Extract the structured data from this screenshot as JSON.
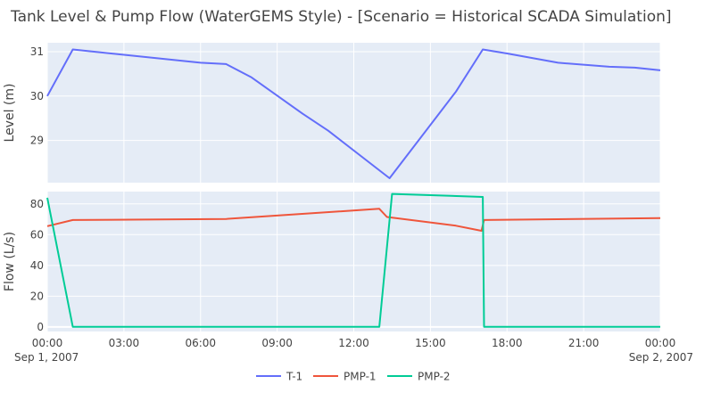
{
  "chart_data": {
    "type": "line",
    "title": "Tank Level & Pump Flow (WaterGEMS Style) - [Scenario = Historical SCADA Simulation]",
    "colors": {
      "plot_bg": "#E5ECF6",
      "grid": "#FFFFFF",
      "T-1": "#636EFA",
      "PMP-1": "#EF553B",
      "PMP-2": "#00CC96"
    },
    "x_axis": {
      "range_hours": [
        0,
        24
      ],
      "ticks": [
        {
          "h": 0,
          "label": "00:00",
          "sub": "Sep 1, 2007"
        },
        {
          "h": 3,
          "label": "03:00",
          "sub": ""
        },
        {
          "h": 6,
          "label": "06:00",
          "sub": ""
        },
        {
          "h": 9,
          "label": "09:00",
          "sub": ""
        },
        {
          "h": 12,
          "label": "12:00",
          "sub": ""
        },
        {
          "h": 15,
          "label": "15:00",
          "sub": ""
        },
        {
          "h": 18,
          "label": "18:00",
          "sub": ""
        },
        {
          "h": 21,
          "label": "21:00",
          "sub": ""
        },
        {
          "h": 24,
          "label": "00:00",
          "sub": "Sep 2, 2007"
        }
      ]
    },
    "panels": [
      {
        "id": "level",
        "ylabel": "Level (m)",
        "ylim": [
          28.05,
          31.2
        ],
        "yticks": [
          29,
          30,
          31
        ],
        "series": [
          {
            "name": "T-1",
            "x": [
              0,
              1,
              6,
              7,
              8,
              10,
              11,
              13.4,
              16,
              17.05,
              18,
              20,
              22,
              23,
              24
            ],
            "y": [
              30.0,
              31.05,
              30.75,
              30.72,
              30.42,
              29.6,
              29.22,
              28.15,
              30.1,
              31.05,
              30.96,
              30.75,
              30.66,
              30.64,
              30.58
            ]
          }
        ]
      },
      {
        "id": "flow",
        "ylabel": "Flow  (L/s)",
        "ylim": [
          -3,
          88
        ],
        "yticks": [
          0,
          20,
          40,
          60,
          80
        ],
        "series": [
          {
            "name": "PMP-1",
            "x": [
              0,
              1,
              7,
              13,
              13.3,
              16,
              17,
              17.1,
              24
            ],
            "y": [
              65.5,
              69.5,
              70.2,
              76.8,
              71.5,
              65.8,
              62.5,
              69.5,
              70.8
            ]
          },
          {
            "name": "PMP-2",
            "x": [
              0,
              1,
              13,
              13.5,
              17.05,
              17.1,
              24
            ],
            "y": [
              84,
              0,
              0,
              86.5,
              84.5,
              0,
              0
            ]
          }
        ]
      }
    ],
    "legend": {
      "placement": "bottom-center",
      "entries": [
        "T-1",
        "PMP-1",
        "PMP-2"
      ]
    }
  }
}
